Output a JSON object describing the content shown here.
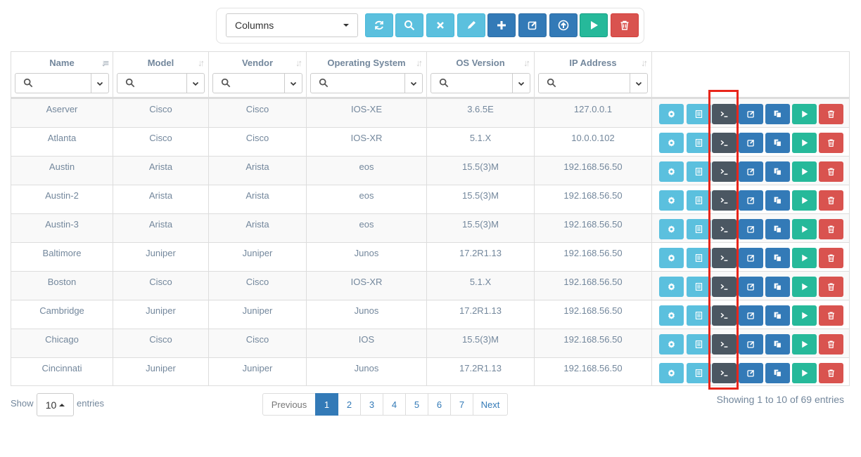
{
  "toolbar": {
    "columns_label": "Columns",
    "buttons": [
      {
        "name": "refresh-button",
        "icon": "refresh-icon",
        "color": "#5bc0de"
      },
      {
        "name": "search-button",
        "icon": "search-icon",
        "color": "#5bc0de"
      },
      {
        "name": "clear-button",
        "icon": "close-icon",
        "color": "#5bc0de"
      },
      {
        "name": "edit-button",
        "icon": "pencil-icon",
        "color": "#5bc0de"
      },
      {
        "name": "add-button",
        "icon": "plus-icon",
        "color": "#337ab7"
      },
      {
        "name": "edit-selected-button",
        "icon": "edit-square-icon",
        "color": "#337ab7"
      },
      {
        "name": "upload-button",
        "icon": "upload-circle-icon",
        "color": "#337ab7"
      },
      {
        "name": "run-button",
        "icon": "play-icon",
        "color": "#26b99a"
      },
      {
        "name": "delete-button",
        "icon": "trash-icon",
        "color": "#d9534f"
      }
    ]
  },
  "table": {
    "columns": [
      {
        "label": "Name"
      },
      {
        "label": "Model"
      },
      {
        "label": "Vendor"
      },
      {
        "label": "Operating System"
      },
      {
        "label": "OS Version"
      },
      {
        "label": "IP Address"
      }
    ],
    "rows": [
      [
        "Aserver",
        "Cisco",
        "Cisco",
        "IOS-XE",
        "3.6.5E",
        "127.0.0.1"
      ],
      [
        "Atlanta",
        "Cisco",
        "Cisco",
        "IOS-XR",
        "5.1.X",
        "10.0.0.102"
      ],
      [
        "Austin",
        "Arista",
        "Arista",
        "eos",
        "15.5(3)M",
        "192.168.56.50"
      ],
      [
        "Austin-2",
        "Arista",
        "Arista",
        "eos",
        "15.5(3)M",
        "192.168.56.50"
      ],
      [
        "Austin-3",
        "Arista",
        "Arista",
        "eos",
        "15.5(3)M",
        "192.168.56.50"
      ],
      [
        "Baltimore",
        "Juniper",
        "Juniper",
        "Junos",
        "17.2R1.13",
        "192.168.56.50"
      ],
      [
        "Boston",
        "Cisco",
        "Cisco",
        "IOS-XR",
        "5.1.X",
        "192.168.56.50"
      ],
      [
        "Cambridge",
        "Juniper",
        "Juniper",
        "Junos",
        "17.2R1.13",
        "192.168.56.50"
      ],
      [
        "Chicago",
        "Cisco",
        "Cisco",
        "IOS",
        "15.5(3)M",
        "192.168.56.50"
      ],
      [
        "Cincinnati",
        "Juniper",
        "Juniper",
        "Junos",
        "17.2R1.13",
        "192.168.56.50"
      ]
    ],
    "row_actions": [
      {
        "name": "settings-button",
        "icon": "gear-icon",
        "color": "#5bc0de"
      },
      {
        "name": "details-button",
        "icon": "list-icon",
        "color": "#5bc0de"
      },
      {
        "name": "terminal-button",
        "icon": "terminal-icon",
        "color": "#4b5762"
      },
      {
        "name": "edit-button",
        "icon": "edit-square-icon",
        "color": "#337ab7"
      },
      {
        "name": "duplicate-button",
        "icon": "copy-icon",
        "color": "#337ab7"
      },
      {
        "name": "run-button",
        "icon": "play-icon",
        "color": "#26b99a"
      },
      {
        "name": "delete-button",
        "icon": "trash-icon",
        "color": "#d9534f"
      }
    ]
  },
  "footer": {
    "show_label": "Show",
    "page_length": "10",
    "entries_label": "entries",
    "pagination": [
      "Previous",
      "1",
      "2",
      "3",
      "4",
      "5",
      "6",
      "7",
      "Next"
    ],
    "active_page": "1",
    "info": "Showing 1 to 10 of 69 entries"
  }
}
